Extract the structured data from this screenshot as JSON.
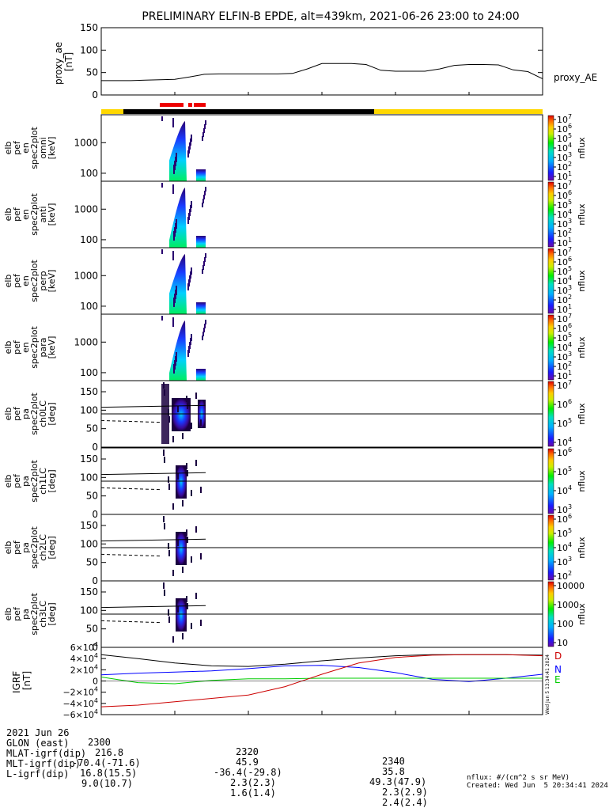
{
  "title": "PRELIMINARY ELFIN-B EPDE, alt=439km, 2021-06-26 23:00 to 24:00",
  "chart_data": [
    {
      "type": "line",
      "panel": "proxy_ae",
      "ylabel_lines": [
        "proxy_ae",
        "[nT]"
      ],
      "series_label": "proxy_AE",
      "ylim": [
        0,
        150
      ],
      "yticks": [
        "150",
        "100",
        "50",
        "0"
      ],
      "x_minutes": [
        0,
        2,
        4,
        6,
        8,
        10,
        12,
        14,
        16,
        18,
        20,
        22,
        24,
        26,
        28,
        30,
        32,
        34,
        36,
        38,
        40,
        42,
        44,
        46,
        48,
        50,
        52,
        54,
        56,
        58,
        60
      ],
      "values": [
        32,
        32,
        32,
        33,
        34,
        35,
        40,
        46,
        47,
        47,
        47,
        47,
        47,
        48,
        58,
        70,
        70,
        70,
        68,
        55,
        53,
        53,
        53,
        58,
        66,
        68,
        68,
        67,
        56,
        52,
        36
      ]
    },
    {
      "type": "heatmap",
      "panels": [
        {
          "label_lines": [
            "elb",
            "pef",
            "en",
            "spec2plot",
            "omni",
            "[keV]"
          ],
          "yticks": [
            "1000",
            "100"
          ],
          "cbar_ticks": [
            "10^7",
            "10^6",
            "10^5",
            "10^4",
            "10^3",
            "10^2",
            "10^1"
          ],
          "cbar_label": "nflux"
        },
        {
          "label_lines": [
            "elb",
            "pef",
            "en",
            "spec2plot",
            "anti",
            "[keV]"
          ],
          "yticks": [
            "1000",
            "100"
          ],
          "cbar_ticks": [
            "10^7",
            "10^6",
            "10^5",
            "10^4",
            "10^3",
            "10^2",
            "10^1"
          ],
          "cbar_label": "nflux"
        },
        {
          "label_lines": [
            "elb",
            "pef",
            "en",
            "spec2plot",
            "perp",
            "[keV]"
          ],
          "yticks": [
            "1000",
            "100"
          ],
          "cbar_ticks": [
            "10^7",
            "10^6",
            "10^5",
            "10^4",
            "10^3",
            "10^2",
            "10^1"
          ],
          "cbar_label": "nflux"
        },
        {
          "label_lines": [
            "elb",
            "pef",
            "en",
            "spec2plot",
            "para",
            "[keV]"
          ],
          "yticks": [
            "1000",
            "100"
          ],
          "cbar_ticks": [
            "10^7",
            "10^6",
            "10^5",
            "10^4",
            "10^3",
            "10^2",
            "10^1"
          ],
          "cbar_label": "nflux"
        },
        {
          "label_lines": [
            "elb",
            "pef",
            "pa",
            "spec2plot",
            "ch0LC",
            "[deg]"
          ],
          "yticks": [
            "150",
            "100",
            "50",
            "0"
          ],
          "cbar_ticks": [
            "10^7",
            "10^6",
            "10^5",
            "10^4"
          ],
          "cbar_label": "nflux"
        },
        {
          "label_lines": [
            "elb",
            "pef",
            "pa",
            "spec2plot",
            "ch1LC",
            "[deg]"
          ],
          "yticks": [
            "150",
            "100",
            "50",
            "0"
          ],
          "cbar_ticks": [
            "10^6",
            "10^5",
            "10^4",
            "10^3"
          ],
          "cbar_label": "nflux"
        },
        {
          "label_lines": [
            "elb",
            "pef",
            "pa",
            "spec2plot",
            "ch2LC",
            "[deg]"
          ],
          "yticks": [
            "150",
            "100",
            "50",
            "0"
          ],
          "cbar_ticks": [
            "10^6",
            "10^5",
            "10^4",
            "10^3",
            "10^2"
          ],
          "cbar_label": "nflux"
        },
        {
          "label_lines": [
            "elb",
            "pef",
            "pa",
            "spec2plot",
            "ch3LC",
            "[deg]"
          ],
          "yticks": [
            "150",
            "100",
            "50",
            "0"
          ],
          "cbar_ticks": [
            "10000",
            "1000",
            "100",
            "10"
          ],
          "cbar_label": "nflux"
        }
      ]
    },
    {
      "type": "line",
      "panel": "IGRF",
      "ylabel_lines": [
        "IGRF",
        "[nT]"
      ],
      "ylim": [
        -60000,
        60000
      ],
      "yticks": [
        "6×10^4",
        "4×10^4",
        "2×10^4",
        "0",
        "−2×10^4",
        "−4×10^4",
        "−6×10^4"
      ],
      "x_minutes": [
        0,
        5,
        10,
        15,
        20,
        25,
        30,
        35,
        40,
        45,
        50,
        55,
        60
      ],
      "series": [
        {
          "name": "D",
          "color": "#000000",
          "values": [
            47000,
            40000,
            32000,
            27000,
            26000,
            30000,
            36000,
            41000,
            45000,
            47000,
            47000,
            47000,
            46000
          ]
        },
        {
          "name": "N",
          "color": "#0000ff",
          "values": [
            11000,
            14000,
            16000,
            18000,
            22000,
            27000,
            28000,
            24000,
            15000,
            3000,
            -1000,
            5000,
            12000
          ]
        },
        {
          "name": "E",
          "color": "#00cc00",
          "values": [
            7000,
            -3000,
            -5000,
            1000,
            4000,
            4000,
            5000,
            5000,
            5000,
            5000,
            5000,
            5000,
            5000
          ]
        },
        {
          "name": "",
          "color": "#cc0000",
          "values": [
            -46000,
            -43000,
            -37000,
            -31000,
            -25000,
            -10000,
            12000,
            32000,
            42000,
            46000,
            47000,
            47000,
            45000
          ]
        }
      ]
    }
  ],
  "footer": {
    "rows": [
      {
        "label": "2021 Jun 26",
        "col1": "2300",
        "col2": "2320",
        "col3": "2340"
      },
      {
        "label": "GLON (east)",
        "col1": "216.8",
        "col2": "45.9",
        "col3": "35.8"
      },
      {
        "label": "MLAT-igrf(dip)",
        "col1": "-70.4(-71.6)",
        "col2": "-36.4(-29.8)",
        "col3": "49.3(47.9)"
      },
      {
        "label": "MLT-igrf(dip)",
        "col1": "16.8(15.5)",
        "col2": "2.3(2.3)",
        "col3": "2.3(2.9)"
      },
      {
        "label": "L-igrf(dip)",
        "col1": "9.0(10.7)",
        "col2": "1.6(1.4)",
        "col3": "2.4(2.4)"
      }
    ],
    "units_note": "nflux: #/(cm^2 s sr MeV)",
    "created": "Created: Wed Jun  5 20:34:41 2024",
    "side_stamp": "Wed Jun  5 13:34:41 2024"
  }
}
